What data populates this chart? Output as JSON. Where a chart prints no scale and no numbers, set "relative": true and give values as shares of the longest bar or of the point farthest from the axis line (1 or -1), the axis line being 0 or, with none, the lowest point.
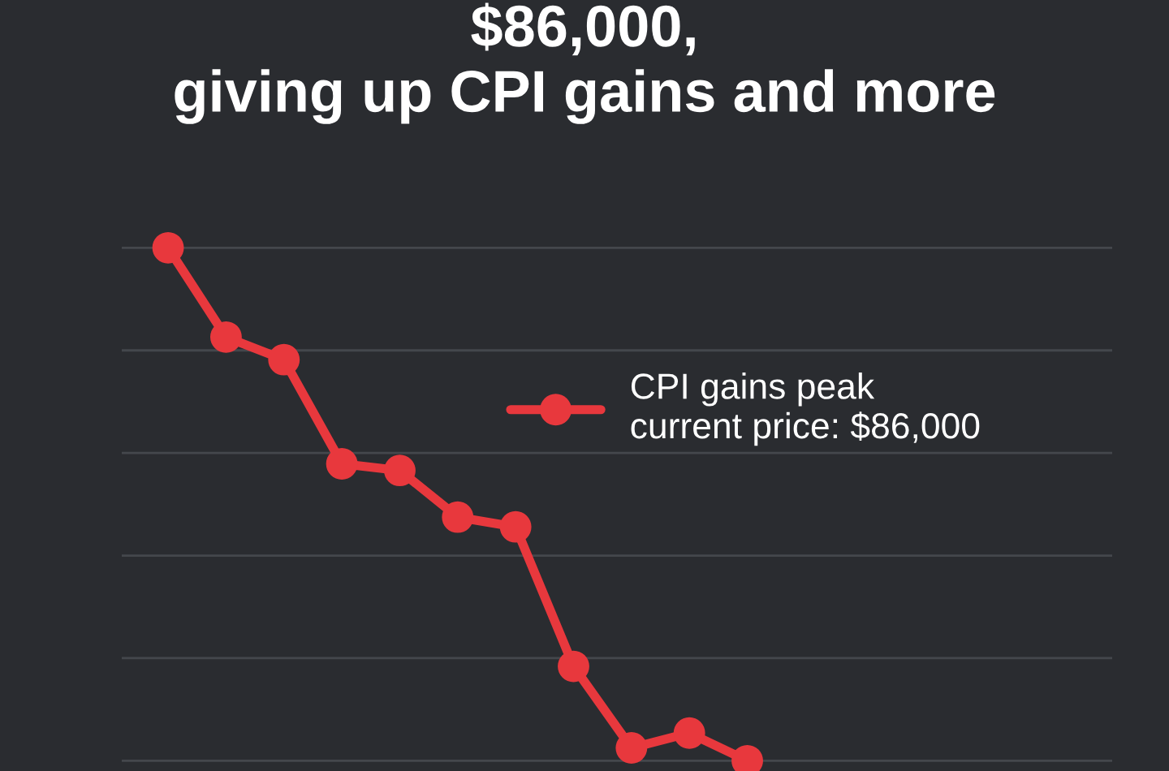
{
  "chart_data": {
    "type": "line",
    "title": "$86,000,\ngiving up CPI gains and more",
    "relative": true,
    "grid": "y",
    "legend": "upper right",
    "marker": "circle",
    "line_style": "solid",
    "categories": [
      null,
      null,
      null,
      null,
      null,
      null,
      null,
      null,
      null,
      null,
      null
    ],
    "series": [
      {
        "name": "CPI gains peak\ncurrent price: $86,000",
        "color": "#e8383d",
        "values": [
          1,
          0.826,
          0.782,
          0.579,
          0.566,
          0.475,
          0.456,
          0.184,
          0.025,
          0.054,
          0
        ]
      }
    ]
  }
}
